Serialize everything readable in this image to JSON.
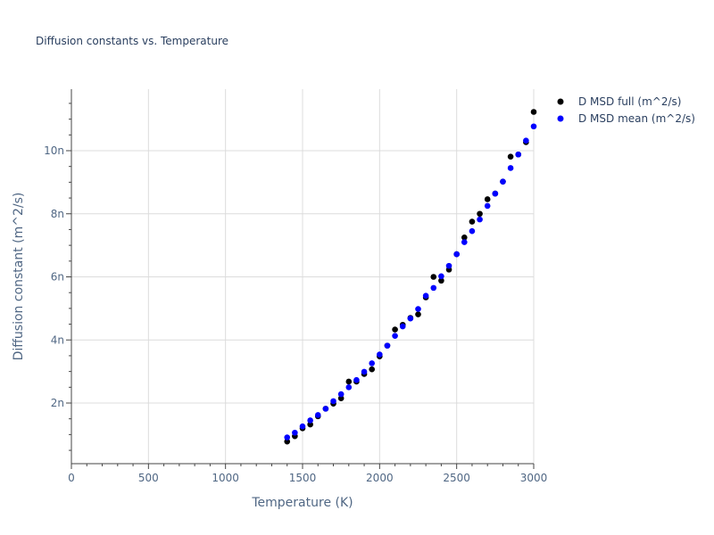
{
  "chart_data": {
    "type": "scatter",
    "title": "Diffusion constants vs. Temperature",
    "xlabel": "Temperature (K)",
    "ylabel": "Diffusion constant (m^2/s)",
    "xlim": [
      0,
      3000
    ],
    "ylim": [
      1e-10,
      1.2e-09
    ],
    "x_ticks": [
      0,
      500,
      1000,
      1500,
      2000,
      2500,
      3000
    ],
    "x_tick_labels": [
      "0",
      "500",
      "1000",
      "1500",
      "2000",
      "2500",
      "3000"
    ],
    "y_ticks": [
      2e-10,
      4e-10,
      6e-10,
      8e-10,
      1e-09
    ],
    "y_tick_labels": [
      "2n",
      "4n",
      "6n",
      "8n",
      "10n"
    ],
    "grid": true,
    "legend_position": "top-right outside",
    "series": [
      {
        "name": "D MSD full (m^2/s)",
        "color": "#000000",
        "x": [
          1400,
          1450,
          1500,
          1550,
          1600,
          1650,
          1700,
          1750,
          1800,
          1850,
          1900,
          1950,
          2000,
          2050,
          2100,
          2150,
          2200,
          2250,
          2300,
          2350,
          2400,
          2450,
          2500,
          2550,
          2600,
          2650,
          2700,
          2750,
          2800,
          2850,
          2900,
          2950,
          3000
        ],
        "y": [
          7.8e-11,
          9.5e-11,
          1.2e-10,
          1.32e-10,
          1.58e-10,
          1.82e-10,
          1.98e-10,
          2.15e-10,
          2.68e-10,
          2.68e-10,
          2.92e-10,
          3.07e-10,
          3.48e-10,
          3.82e-10,
          4.33e-10,
          4.48e-10,
          4.7e-10,
          4.81e-10,
          5.35e-10,
          6e-10,
          5.88e-10,
          6.23e-10,
          6.72e-10,
          7.25e-10,
          7.75e-10,
          8e-10,
          8.46e-10,
          8.64e-10,
          9.02e-10,
          9.81e-10,
          9.88e-10,
          1.027e-09,
          1.123e-09
        ]
      },
      {
        "name": "D MSD mean (m^2/s)",
        "color": "#0000ff",
        "x": [
          1400,
          1450,
          1500,
          1550,
          1600,
          1650,
          1700,
          1750,
          1800,
          1850,
          1900,
          1950,
          2000,
          2050,
          2100,
          2150,
          2200,
          2250,
          2300,
          2350,
          2400,
          2450,
          2500,
          2550,
          2600,
          2650,
          2700,
          2750,
          2800,
          2850,
          2900,
          2950,
          3000
        ],
        "y": [
          9.1e-11,
          1.06e-10,
          1.26e-10,
          1.45e-10,
          1.62e-10,
          1.82e-10,
          2.06e-10,
          2.28e-10,
          2.5e-10,
          2.73e-10,
          2.99e-10,
          3.26e-10,
          3.54e-10,
          3.82e-10,
          4.13e-10,
          4.43e-10,
          4.68e-10,
          4.98e-10,
          5.4e-10,
          5.65e-10,
          6.02e-10,
          6.35e-10,
          6.72e-10,
          7.1e-10,
          7.45e-10,
          7.82e-10,
          8.25e-10,
          8.64e-10,
          9.02e-10,
          9.45e-10,
          9.88e-10,
          1.032e-09,
          1.077e-09
        ]
      }
    ]
  }
}
